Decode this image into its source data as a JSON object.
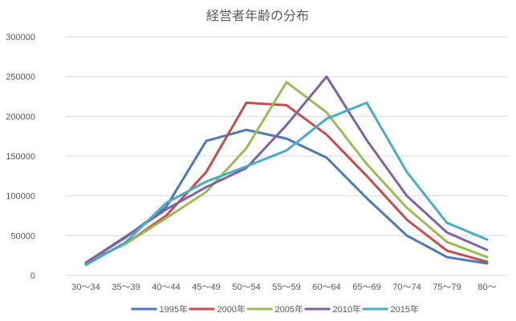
{
  "chart_data": {
    "type": "line",
    "title": "経営者年齢の分布",
    "xlabel": "",
    "ylabel": "",
    "categories": [
      "30～34",
      "35～39",
      "40～44",
      "45～49",
      "50～54",
      "55～59",
      "60～64",
      "65～69",
      "70～74",
      "75～79",
      "80～"
    ],
    "ylim": [
      0,
      300000
    ],
    "yticks": [
      0,
      50000,
      100000,
      150000,
      200000,
      250000,
      300000
    ],
    "grid": true,
    "legend": "bottom",
    "series": [
      {
        "name": "1995年",
        "color": "#4a7ab7",
        "values": [
          16000,
          48000,
          86000,
          169000,
          183000,
          172000,
          148000,
          97000,
          50000,
          23000,
          15000
        ]
      },
      {
        "name": "2000年",
        "color": "#c0504d",
        "values": [
          16000,
          40000,
          75000,
          130000,
          217000,
          214000,
          177000,
          125000,
          70000,
          31000,
          17000
        ]
      },
      {
        "name": "2005年",
        "color": "#9bbb59",
        "values": [
          15000,
          40000,
          72000,
          105000,
          160000,
          243000,
          205000,
          140000,
          85000,
          42000,
          23000
        ]
      },
      {
        "name": "2010年",
        "color": "#8064a2",
        "values": [
          16000,
          49000,
          83000,
          111000,
          135000,
          189000,
          250000,
          170000,
          100000,
          54000,
          32000
        ]
      },
      {
        "name": "2015年",
        "color": "#4bacc6",
        "values": [
          13000,
          42000,
          91000,
          118000,
          137000,
          157000,
          197000,
          217000,
          130000,
          66000,
          45000
        ]
      }
    ]
  }
}
